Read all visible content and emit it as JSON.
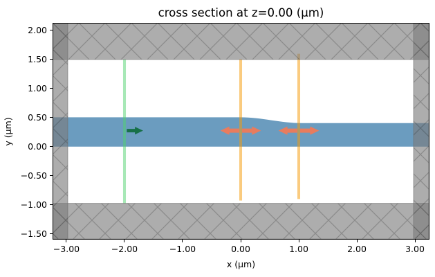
{
  "chart_data": {
    "type": "cross_section",
    "title": "cross section at z=0.00 (μm)",
    "xlabel": "x (μm)",
    "ylabel": "y (μm)",
    "xlim": [
      -3.238,
      3.238
    ],
    "ylim": [
      -1.589,
      2.131
    ],
    "xticks": [
      -3,
      -2,
      -1,
      0,
      1,
      2,
      3
    ],
    "xtick_labels": [
      "−3.00",
      "−2.00",
      "−1.00",
      "0.00",
      "1.00",
      "2.00",
      "3.00"
    ],
    "yticks": [
      2,
      1.5,
      1,
      0.5,
      0,
      -0.5,
      -1,
      -1.5
    ],
    "ytick_labels": [
      "2.00",
      "1.50",
      "1.00",
      "0.50",
      "0.00",
      "−0.50",
      "−1.00",
      "−1.50"
    ],
    "background_color": "#ffffff",
    "waveguide": {
      "label": "tapered waveguide slab",
      "color": "#6b9cbf",
      "y_bottom": 0.0,
      "top_left": 0.505,
      "top_right": 0.405,
      "taper_x_start": 0.0,
      "taper_x_end": 1.05
    },
    "pml": {
      "fill": "rgba(122,122,122,0.62)",
      "hatch_stroke": "rgba(0,0,0,0.2)",
      "edge_stroke": "rgba(110,110,110,0.6)",
      "regions": [
        {
          "name": "top",
          "x": [
            -3.238,
            3.238
          ],
          "y": [
            1.5,
            2.131
          ]
        },
        {
          "name": "bottom",
          "x": [
            -3.238,
            3.238
          ],
          "y": [
            -1.589,
            -0.976
          ]
        },
        {
          "name": "left",
          "x": [
            -3.238,
            -2.976
          ],
          "y": [
            -1.589,
            2.131
          ]
        },
        {
          "name": "right",
          "x": [
            2.976,
            3.238
          ],
          "y": [
            -1.589,
            2.131
          ]
        }
      ]
    },
    "source": {
      "x": -2.0,
      "width": 0.048,
      "y_span": [
        -0.976,
        1.5
      ],
      "line_color": "rgba(80,210,110,0.5)",
      "arrow": {
        "color": "#177048",
        "cy": 0.275,
        "x_tail": -1.96,
        "x_tip": -1.68,
        "head_len": 0.14,
        "shaft_half": 0.03,
        "head_half": 0.066,
        "direction": "+x"
      }
    },
    "monitors": {
      "line_color": "rgba(245,155,10,0.52)",
      "arrow_color": "#e87c5e",
      "items": [
        {
          "x": 0.0,
          "width": 0.048,
          "y_span": [
            -0.928,
            1.5
          ]
        },
        {
          "x": 1.0,
          "width": 0.048,
          "y_span": [
            -0.902,
            1.599
          ]
        }
      ],
      "arrow": {
        "cy": 0.275,
        "tip": 0.35,
        "head_base": 0.195,
        "gap": 0.024,
        "shaft_half": 0.036,
        "head_half": 0.072
      }
    }
  }
}
